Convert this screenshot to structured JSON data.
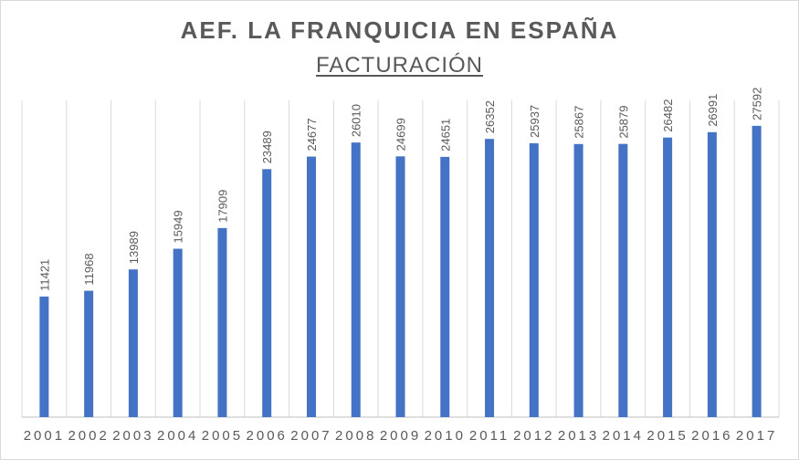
{
  "chart_data": {
    "type": "bar",
    "title": "AEF. LA FRANQUICIA  EN ESPAÑA",
    "subtitle": "FACTURACIÓN",
    "xlabel": "",
    "ylabel": "",
    "categories": [
      "2001",
      "2002",
      "2003",
      "2004",
      "2005",
      "2006",
      "2007",
      "2008",
      "2009",
      "2010",
      "2011",
      "2012",
      "2013",
      "2014",
      "2015",
      "2016",
      "2017"
    ],
    "values": [
      11421,
      11968,
      13989,
      15949,
      17909,
      23489,
      24677,
      26010,
      24699,
      24651,
      26352,
      25937,
      25867,
      25879,
      26482,
      26991,
      27592
    ],
    "ylim": [
      0,
      30000
    ],
    "grid": "vertical",
    "legend": "none",
    "bar_color": "#4472c4",
    "grid_color": "#d9d9d9",
    "axis_color": "#bfbfbf"
  }
}
